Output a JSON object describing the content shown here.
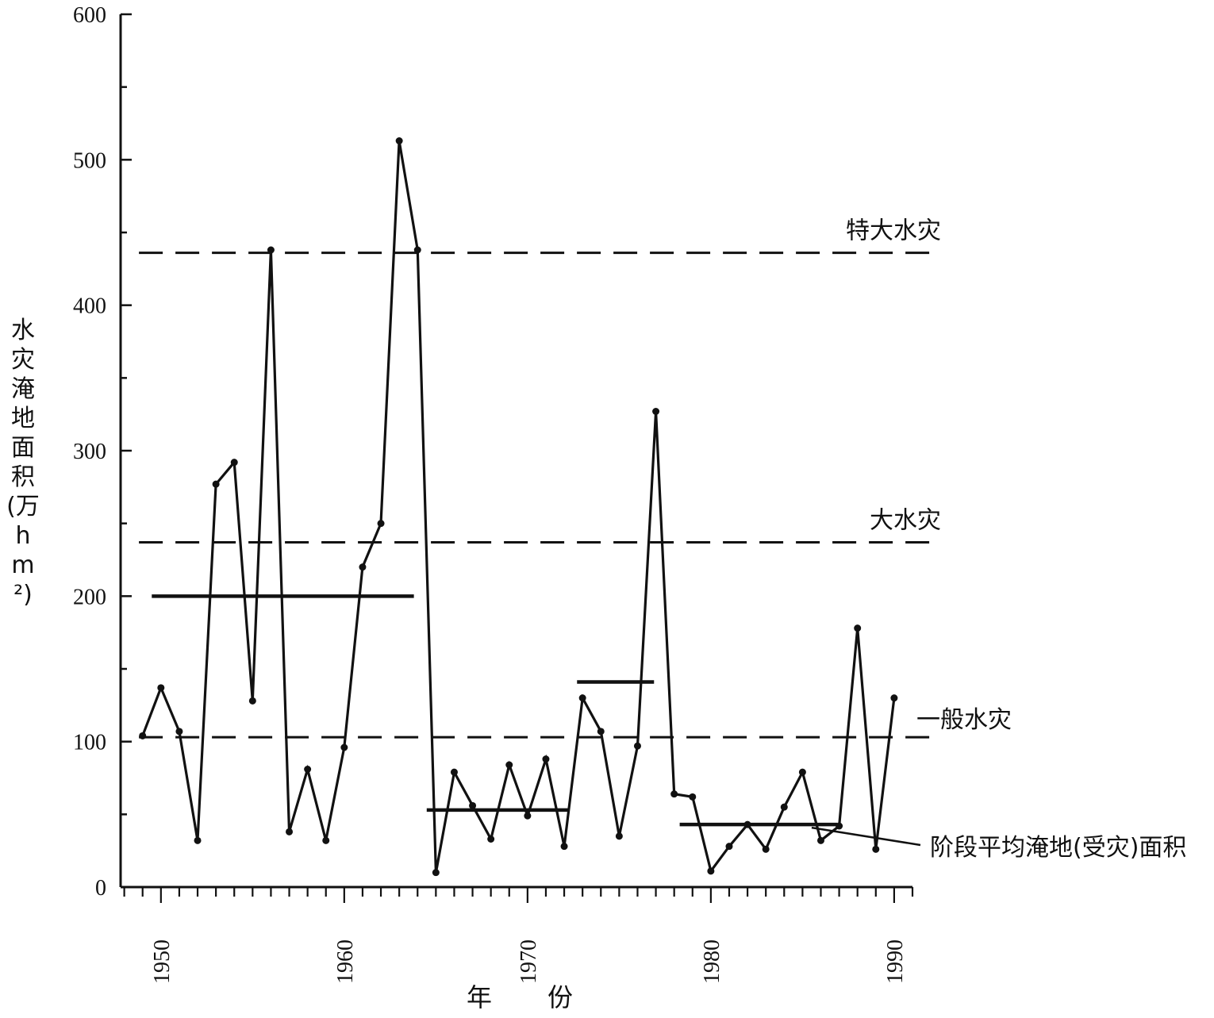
{
  "chart_data": {
    "type": "line",
    "title": "",
    "xlabel": "年份",
    "ylabel": "水灾淹地面积(万hm²)",
    "xlim": [
      1947.8,
      1991
    ],
    "ylim": [
      0,
      600
    ],
    "x_ticks": [
      1950,
      1960,
      1970,
      1980,
      1990
    ],
    "y_ticks": [
      0,
      100,
      200,
      300,
      400,
      500,
      600
    ],
    "grid": false,
    "series": [
      {
        "x": [
          1949,
          1950,
          1951,
          1952,
          1953,
          1954,
          1955,
          1956,
          1957,
          1958,
          1959,
          1960,
          1961,
          1962,
          1963,
          1964,
          1965,
          1966,
          1967,
          1968,
          1969,
          1970,
          1971,
          1972,
          1973,
          1974,
          1975,
          1976,
          1977,
          1978,
          1979,
          1980,
          1981,
          1982,
          1983,
          1984,
          1985,
          1986,
          1987,
          1988,
          1989,
          1990
        ],
        "values": [
          104,
          137,
          107,
          32,
          277,
          292,
          128,
          438,
          38,
          81,
          32,
          96,
          220,
          250,
          513,
          438,
          10,
          79,
          56,
          33,
          84,
          49,
          88,
          28,
          130,
          107,
          35,
          97,
          327,
          64,
          62,
          11,
          28,
          43,
          26,
          55,
          79,
          32,
          42,
          178,
          26,
          130
        ]
      }
    ],
    "thresholds": [
      {
        "label": "特大水灾",
        "value": 436
      },
      {
        "label": "大水灾",
        "value": 237
      },
      {
        "label": "一般水灾",
        "value": 103
      }
    ],
    "period_means": [
      {
        "x_start": 1949.5,
        "x_end": 1963.8,
        "value": 200
      },
      {
        "x_start": 1964.5,
        "x_end": 1972.2,
        "value": 53
      },
      {
        "x_start": 1972.7,
        "x_end": 1976.9,
        "value": 141
      },
      {
        "x_start": 1978.3,
        "x_end": 1986.9,
        "value": 43
      }
    ],
    "annotation": "阶段平均淹地(受灾)面积"
  }
}
